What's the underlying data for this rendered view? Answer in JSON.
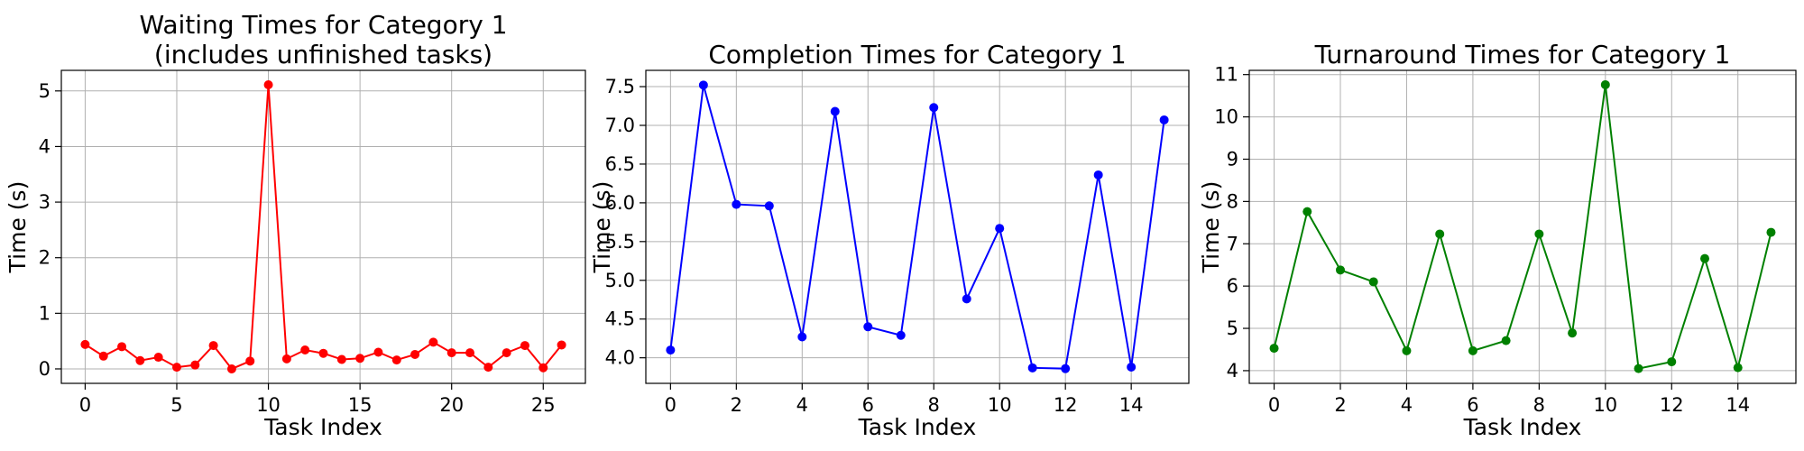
{
  "chart_data": [
    {
      "type": "line",
      "title_lines": [
        "Waiting Times for Category 1",
        "(includes unfinished tasks)"
      ],
      "xlabel": "Task Index",
      "ylabel": "Time (s)",
      "color": "#ff0000",
      "xlim": [
        -1.3,
        27.3
      ],
      "ylim": [
        -0.26,
        5.37
      ],
      "xticks": [
        0,
        5,
        10,
        15,
        20,
        25
      ],
      "yticks": [
        0,
        1,
        2,
        3,
        4,
        5
      ],
      "xtick_labels": [
        "0",
        "5",
        "10",
        "15",
        "20",
        "25"
      ],
      "ytick_labels": [
        "0",
        "1",
        "2",
        "3",
        "4",
        "5"
      ],
      "grid": true,
      "x": [
        0,
        1,
        2,
        3,
        4,
        5,
        6,
        7,
        8,
        9,
        10,
        11,
        12,
        13,
        14,
        15,
        16,
        17,
        18,
        19,
        20,
        21,
        22,
        23,
        24,
        25,
        26
      ],
      "y": [
        0.44,
        0.23,
        0.4,
        0.15,
        0.21,
        0.03,
        0.07,
        0.42,
        0.0,
        0.14,
        5.11,
        0.18,
        0.34,
        0.28,
        0.17,
        0.19,
        0.3,
        0.16,
        0.26,
        0.48,
        0.29,
        0.29,
        0.03,
        0.29,
        0.42,
        0.02,
        0.43
      ]
    },
    {
      "type": "line",
      "title_lines": [
        "Completion Times for Category 1"
      ],
      "xlabel": "Task Index",
      "ylabel": "Time (s)",
      "color": "#0000ff",
      "xlim": [
        -0.75,
        15.75
      ],
      "ylim": [
        3.67,
        7.71
      ],
      "xticks": [
        0,
        2,
        4,
        6,
        8,
        10,
        12,
        14
      ],
      "yticks": [
        4.0,
        4.5,
        5.0,
        5.5,
        6.0,
        6.5,
        7.0,
        7.5
      ],
      "xtick_labels": [
        "0",
        "2",
        "4",
        "6",
        "8",
        "10",
        "12",
        "14"
      ],
      "ytick_labels": [
        "4.0",
        "4.5",
        "5.0",
        "5.5",
        "6.0",
        "6.5",
        "7.0",
        "7.5"
      ],
      "grid": true,
      "x": [
        0,
        1,
        2,
        3,
        4,
        5,
        6,
        7,
        8,
        9,
        10,
        11,
        12,
        13,
        14,
        15
      ],
      "y": [
        4.1,
        7.52,
        5.98,
        5.96,
        4.27,
        7.18,
        4.4,
        4.29,
        7.23,
        4.76,
        5.67,
        3.87,
        3.86,
        6.36,
        3.88,
        7.07
      ]
    },
    {
      "type": "line",
      "title_lines": [
        "Turnaround Times for Category 1"
      ],
      "xlabel": "Task Index",
      "ylabel": "Time (s)",
      "color": "#008000",
      "xlim": [
        -0.75,
        15.75
      ],
      "ylim": [
        3.7,
        11.1
      ],
      "xticks": [
        0,
        2,
        4,
        6,
        8,
        10,
        12,
        14
      ],
      "yticks": [
        4,
        5,
        6,
        7,
        8,
        9,
        10,
        11
      ],
      "xtick_labels": [
        "0",
        "2",
        "4",
        "6",
        "8",
        "10",
        "12",
        "14"
      ],
      "ytick_labels": [
        "4",
        "5",
        "6",
        "7",
        "8",
        "9",
        "10",
        "11"
      ],
      "grid": true,
      "x": [
        0,
        1,
        2,
        3,
        4,
        5,
        6,
        7,
        8,
        9,
        10,
        11,
        12,
        13,
        14,
        15
      ],
      "y": [
        4.53,
        7.76,
        6.38,
        6.1,
        4.47,
        7.23,
        4.47,
        4.71,
        7.23,
        4.89,
        10.76,
        4.05,
        4.21,
        6.65,
        4.07,
        7.27
      ]
    }
  ]
}
